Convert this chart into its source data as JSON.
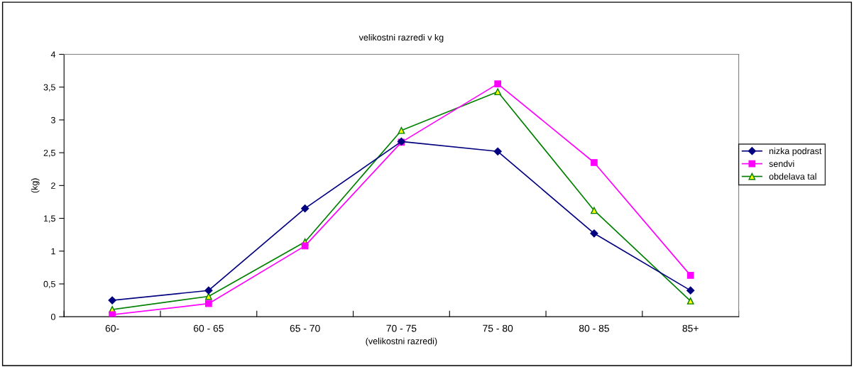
{
  "chart_data": {
    "type": "line",
    "title": "velikostni razredi v kg",
    "xlabel": "(velikostni razredi)",
    "ylabel": "(kg)",
    "categories": [
      "60-",
      "60 - 65",
      "65 - 70",
      "70 - 75",
      "75 - 80",
      "80 - 85",
      "85+"
    ],
    "series": [
      {
        "name": "nizka podrast",
        "color": "#000080",
        "marker": "diamond",
        "values": [
          0.25,
          0.4,
          1.65,
          2.67,
          2.52,
          1.27,
          0.4
        ]
      },
      {
        "name": "sendvi",
        "color": "#ff00ff",
        "marker": "square",
        "values": [
          0.03,
          0.2,
          1.08,
          2.66,
          3.55,
          2.35,
          0.63
        ]
      },
      {
        "name": "obdelava tal",
        "color": "#008000",
        "marker": "triangle",
        "values": [
          0.11,
          0.31,
          1.14,
          2.84,
          3.43,
          1.62,
          0.24
        ]
      }
    ],
    "ylim": [
      0,
      4
    ],
    "yticks": [
      0,
      {
        "value": 0.5,
        "label": "0,5"
      },
      1,
      {
        "value": 1.5,
        "label": "1,5"
      },
      2,
      {
        "value": 2.5,
        "label": "2,5"
      },
      3,
      {
        "value": 3.5,
        "label": "3,5"
      },
      4
    ],
    "grid": false,
    "legend": "right"
  }
}
